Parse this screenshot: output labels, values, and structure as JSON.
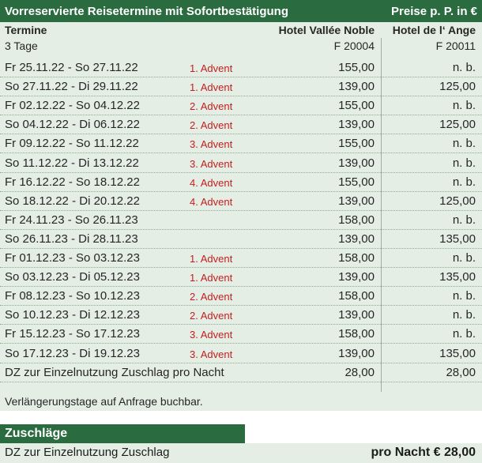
{
  "header": {
    "title": "Vorreservierte Reisetermine mit Sofortbestätigung",
    "price_note": "Preise p. P. in €"
  },
  "columns": {
    "termine": "Termine",
    "tage": "3 Tage",
    "hotel1": "Hotel Vallée Noble",
    "hotel1_code": "F 20004",
    "hotel2": "Hotel de l‘ Ange",
    "hotel2_code": "F 20011"
  },
  "rows": [
    {
      "date": "Fr   25.11.22 - So  27.11.22",
      "advent": "1. Advent",
      "p1": "155,00",
      "p2": "n. b."
    },
    {
      "date": "So  27.11.22 - Di   29.11.22",
      "advent": "1. Advent",
      "p1": "139,00",
      "p2": "125,00"
    },
    {
      "date": "Fr   02.12.22 - So  04.12.22",
      "advent": "2. Advent",
      "p1": "155,00",
      "p2": "n. b."
    },
    {
      "date": "So  04.12.22 - Di   06.12.22",
      "advent": "2. Advent",
      "p1": "139,00",
      "p2": "125,00"
    },
    {
      "date": "Fr   09.12.22 - So  11.12.22",
      "advent": "3. Advent",
      "p1": "155,00",
      "p2": "n. b."
    },
    {
      "date": "So  11.12.22 - Di   13.12.22",
      "advent": "3. Advent",
      "p1": "139,00",
      "p2": "n. b."
    },
    {
      "date": "Fr   16.12.22 - So  18.12.22",
      "advent": "4. Advent",
      "p1": "155,00",
      "p2": "n. b."
    },
    {
      "date": "So  18.12.22 - Di   20.12.22",
      "advent": "4. Advent",
      "p1": "139,00",
      "p2": "125,00"
    },
    {
      "date": "Fr   24.11.23 - So  26.11.23",
      "advent": "",
      "p1": "158,00",
      "p2": "n. b."
    },
    {
      "date": "So  26.11.23 - Di   28.11.23",
      "advent": "",
      "p1": "139,00",
      "p2": "135,00"
    },
    {
      "date": "Fr   01.12.23 - So  03.12.23",
      "advent": "1. Advent",
      "p1": "158,00",
      "p2": "n. b."
    },
    {
      "date": "So  03.12.23 - Di   05.12.23",
      "advent": "1. Advent",
      "p1": "139,00",
      "p2": "135,00"
    },
    {
      "date": "Fr   08.12.23 - So  10.12.23",
      "advent": "2. Advent",
      "p1": "158,00",
      "p2": "n. b."
    },
    {
      "date": "So  10.12.23 - Di   12.12.23",
      "advent": "2. Advent",
      "p1": "139,00",
      "p2": "n. b."
    },
    {
      "date": "Fr   15.12.23 - So  17.12.23",
      "advent": "3. Advent",
      "p1": "158,00",
      "p2": "n. b."
    },
    {
      "date": "So  17.12.23 - Di   19.12.23",
      "advent": "3. Advent",
      "p1": "139,00",
      "p2": "135,00"
    },
    {
      "date": "DZ zur Einzelnutzung Zuschlag pro Nacht",
      "advent": "",
      "p1": "28,00",
      "p2": "28,00"
    }
  ],
  "note": "Verlängerungstage auf Anfrage buchbar.",
  "zuschlaege": {
    "title": "Zuschläge",
    "label": "DZ zur Einzelnutzung Zuschlag",
    "value": "pro Nacht € 28,00"
  }
}
